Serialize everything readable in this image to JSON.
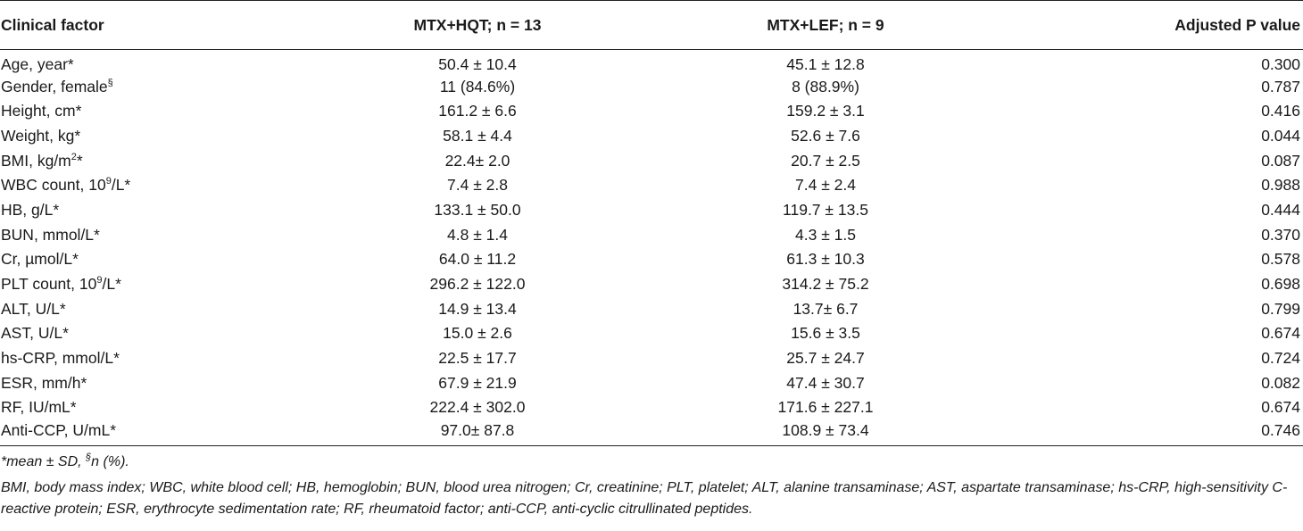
{
  "table": {
    "headers": {
      "factor": "Clinical factor",
      "group1": "MTX+HQT; n = 13",
      "group2": "MTX+LEF; n = 9",
      "p": "Adjusted P value"
    },
    "rows": [
      {
        "pre": "Age, year",
        "sup": "",
        "post": "*",
        "g1": "50.4 ± 10.4",
        "g2": "45.1 ± 12.8",
        "p": "0.300"
      },
      {
        "pre": "Gender, female",
        "sup": "§",
        "post": "",
        "g1": "11 (84.6%)",
        "g2": "8 (88.9%)",
        "p": "0.787"
      },
      {
        "pre": "Height, cm",
        "sup": "",
        "post": "*",
        "g1": "161.2 ± 6.6",
        "g2": "159.2 ± 3.1",
        "p": "0.416"
      },
      {
        "pre": "Weight, kg",
        "sup": "",
        "post": "*",
        "g1": "58.1 ± 4.4",
        "g2": "52.6 ± 7.6",
        "p": "0.044"
      },
      {
        "pre": "BMI, kg/m",
        "sup": "2",
        "post": "*",
        "g1": "22.4± 2.0",
        "g2": "20.7 ± 2.5",
        "p": "0.087"
      },
      {
        "pre": "WBC count, 10",
        "sup": "9",
        "post": "/L*",
        "g1": "7.4 ± 2.8",
        "g2": "7.4 ± 2.4",
        "p": "0.988"
      },
      {
        "pre": "HB, g/L",
        "sup": "",
        "post": "*",
        "g1": "133.1 ± 50.0",
        "g2": "119.7 ± 13.5",
        "p": "0.444"
      },
      {
        "pre": "BUN, mmol/L",
        "sup": "",
        "post": "*",
        "g1": "4.8 ± 1.4",
        "g2": "4.3 ± 1.5",
        "p": "0.370"
      },
      {
        "pre": "Cr, µmol/L",
        "sup": "",
        "post": "*",
        "g1": "64.0 ± 11.2",
        "g2": "61.3 ± 10.3",
        "p": "0.578"
      },
      {
        "pre": "PLT count, 10",
        "sup": "9",
        "post": "/L*",
        "g1": "296.2 ± 122.0",
        "g2": "314.2 ± 75.2",
        "p": "0.698"
      },
      {
        "pre": "ALT, U/L",
        "sup": "",
        "post": "*",
        "g1": "14.9 ± 13.4",
        "g2": "13.7± 6.7",
        "p": "0.799"
      },
      {
        "pre": "AST, U/L",
        "sup": "",
        "post": "*",
        "g1": "15.0 ± 2.6",
        "g2": "15.6 ± 3.5",
        "p": "0.674"
      },
      {
        "pre": "hs-CRP, mmol/L",
        "sup": "",
        "post": "*",
        "g1": "22.5 ± 17.7",
        "g2": "25.7 ± 24.7",
        "p": "0.724"
      },
      {
        "pre": "ESR, mm/h",
        "sup": "",
        "post": "*",
        "g1": "67.9 ± 21.9",
        "g2": "47.4 ± 30.7",
        "p": "0.082"
      },
      {
        "pre": "RF, IU/mL",
        "sup": "",
        "post": "*",
        "g1": "222.4 ± 302.0",
        "g2": "171.6 ± 227.1",
        "p": "0.674"
      },
      {
        "pre": "Anti-CCP, U/mL",
        "sup": "",
        "post": "*",
        "g1": "97.0± 87.8",
        "g2": "108.9 ± 73.4",
        "p": "0.746"
      }
    ]
  },
  "footnotes": {
    "line1_pre": "*mean ± SD, ",
    "line1_sup": "§",
    "line1_post": "n (%).",
    "line2": "BMI, body mass index; WBC, white blood cell; HB, hemoglobin; BUN, blood urea nitrogen; Cr, creatinine; PLT, platelet; ALT, alanine transaminase; AST, aspartate transaminase; hs-CRP, high-sensitivity C-reactive protein; ESR, erythrocyte sedimentation rate; RF, rheumatoid factor; anti-CCP, anti-cyclic citrullinated peptides."
  }
}
